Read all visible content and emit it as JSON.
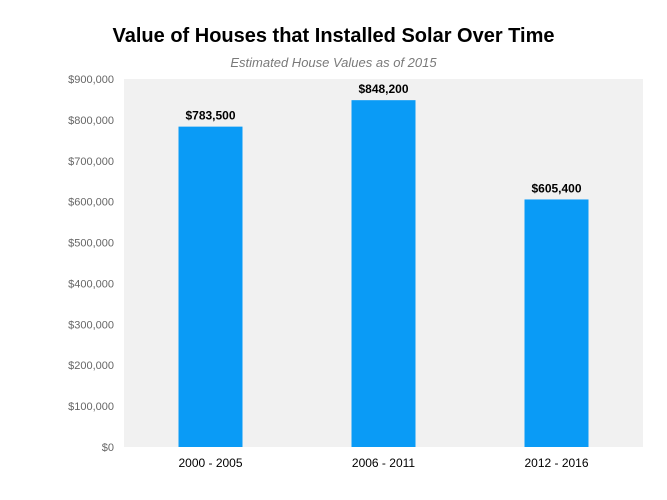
{
  "chart_data": {
    "type": "bar",
    "title": "Value of Houses that Installed Solar Over Time",
    "subtitle": "Estimated House Values as of 2015",
    "categories": [
      "2000 - 2005",
      "2006 - 2011",
      "2012 - 2016"
    ],
    "values": [
      783500,
      848200,
      605400
    ],
    "value_labels": [
      "$783,500",
      "$848,200",
      "$605,400"
    ],
    "y_ticks": [
      0,
      100000,
      200000,
      300000,
      400000,
      500000,
      600000,
      700000,
      800000,
      900000
    ],
    "y_tick_labels": [
      "$0",
      "$100,000",
      "$200,000",
      "$300,000",
      "$400,000",
      "$500,000",
      "$600,000",
      "$700,000",
      "$800,000",
      "$900,000"
    ],
    "ylim": [
      0,
      900000
    ],
    "xlabel": "",
    "ylabel": "",
    "grid": false,
    "colors": {
      "bar": "#0a9bf6",
      "plot_background": "#f1f1f1"
    }
  }
}
